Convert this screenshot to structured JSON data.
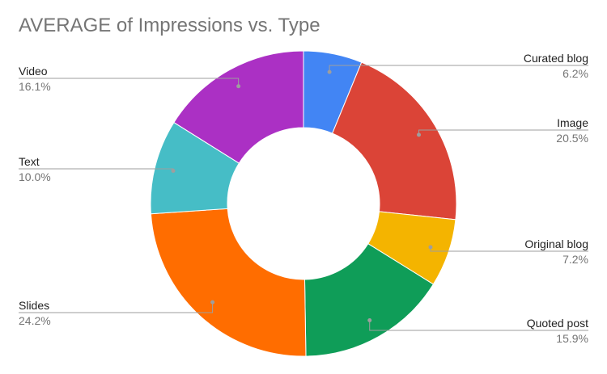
{
  "chart_data": {
    "type": "pie",
    "donut": true,
    "title": "AVERAGE of Impressions vs. Type",
    "slices": [
      {
        "label": "Curated blog",
        "value": 6.2,
        "value_label": "6.2%",
        "color": "#4285f4",
        "label_side": "right"
      },
      {
        "label": "Image",
        "value": 20.5,
        "value_label": "20.5%",
        "color": "#db4437",
        "label_side": "right"
      },
      {
        "label": "Original blog",
        "value": 7.2,
        "value_label": "7.2%",
        "color": "#f4b400",
        "label_side": "right"
      },
      {
        "label": "Quoted post",
        "value": 15.9,
        "value_label": "15.9%",
        "color": "#0f9d58",
        "label_side": "right"
      },
      {
        "label": "Slides",
        "value": 24.2,
        "value_label": "24.2%",
        "color": "#ff6d00",
        "label_side": "left"
      },
      {
        "label": "Text",
        "value": 10.0,
        "value_label": "10.0%",
        "color": "#46bdc6",
        "label_side": "left"
      },
      {
        "label": "Video",
        "value": 16.1,
        "value_label": "16.1%",
        "color": "#ab30c4",
        "label_side": "left"
      }
    ]
  }
}
